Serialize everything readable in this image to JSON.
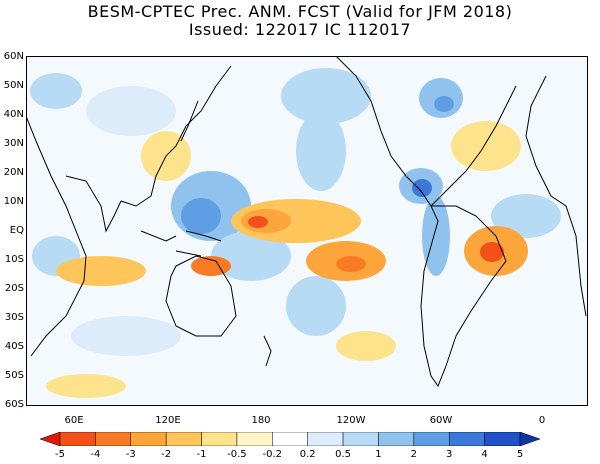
{
  "title": {
    "line1": "BESM-CPTEC Prec. ANM. FCST  (Valid for JFM 2018)",
    "line2": "Issued:  122017 IC 112017"
  },
  "lat_labels": [
    "60N",
    "50N",
    "40N",
    "30N",
    "20N",
    "10N",
    "EQ",
    "10S",
    "20S",
    "30S",
    "40S",
    "50S",
    "60S"
  ],
  "lon_labels": [
    "60E",
    "120E",
    "180",
    "120W",
    "60W",
    "0"
  ],
  "colorbar": {
    "labels": [
      "-5",
      "-4",
      "-3",
      "-2",
      "-1",
      "-0.5",
      "-0.2",
      "0.2",
      "0.5",
      "1",
      "2",
      "3",
      "4",
      "5"
    ],
    "colors": [
      "#e0180a",
      "#f3501a",
      "#f97a24",
      "#fca53a",
      "#fdc55a",
      "#fde48c",
      "#fff5c8",
      "#ffffff",
      "#dcecfa",
      "#b8dbf5",
      "#8fc3ee",
      "#5f9ee4",
      "#3c78da",
      "#2051c8",
      "#0f33a8"
    ]
  }
}
